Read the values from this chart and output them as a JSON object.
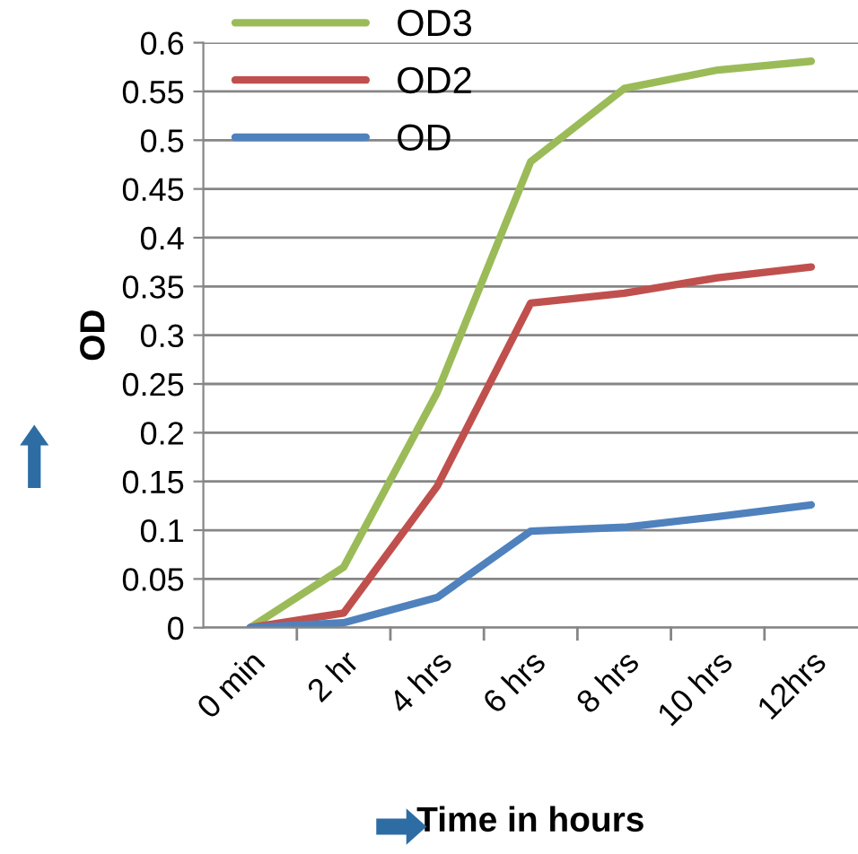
{
  "chart_data": {
    "type": "line",
    "xlabel": "Time in hours",
    "ylabel": "OD",
    "categories": [
      "0 min",
      "2 hr",
      "4 hrs",
      "6 hrs",
      "8 hrs",
      "10 hrs",
      "12hrs"
    ],
    "series": [
      {
        "name": "OD3",
        "color": "#9bbb59",
        "values": [
          0,
          0.062,
          0.241,
          0.478,
          0.553,
          0.572,
          0.581
        ]
      },
      {
        "name": "OD2",
        "color": "#c0504d",
        "values": [
          0,
          0.015,
          0.145,
          0.333,
          0.343,
          0.359,
          0.37
        ]
      },
      {
        "name": "OD",
        "color": "#4f81bd",
        "values": [
          0,
          0.005,
          0.031,
          0.099,
          0.103,
          0.114,
          0.126
        ]
      }
    ],
    "ylim": [
      0,
      0.6
    ],
    "yticks": [
      0,
      0.05,
      0.1,
      0.15,
      0.2,
      0.25,
      0.3,
      0.35,
      0.4,
      0.45,
      0.5,
      0.55,
      0.6
    ],
    "grid": "y",
    "legend": "top left",
    "marker": "none",
    "line_style": "solid"
  }
}
